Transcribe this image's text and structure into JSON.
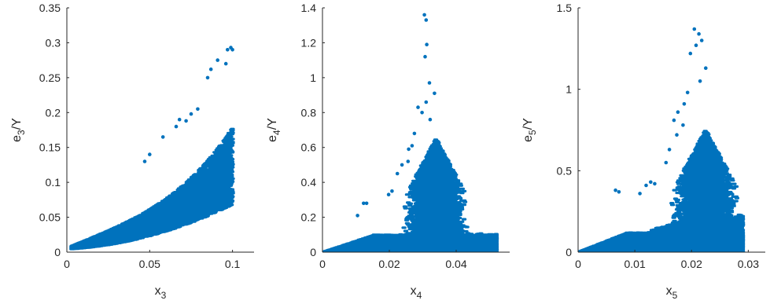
{
  "chart_data": [
    {
      "type": "scatter",
      "xlabel": {
        "base": "x",
        "sub": "3"
      },
      "ylabel": {
        "base": "e",
        "sub": "3",
        "suffix": "/Y"
      },
      "xlim": [
        0,
        0.113
      ],
      "ylim": [
        0,
        0.35
      ],
      "xticks": [
        0,
        0.05,
        0.1
      ],
      "xtick_labels": [
        "0",
        "0.05",
        "0.1"
      ],
      "yticks": [
        0,
        0.05,
        0.1,
        0.15,
        0.2,
        0.25,
        0.3,
        0.35
      ],
      "ytick_labels": [
        "0",
        "0.05",
        "0.1",
        "0.15",
        "0.2",
        "0.25",
        "0.3",
        "0.35"
      ],
      "color": "#0072BD",
      "grid": false,
      "bands": [
        {
          "x0": 0.003,
          "x1": 0.1,
          "lo_a": 0.004,
          "lo_b": 0.12,
          "lo_c": 0.65,
          "hi_a": 0.006,
          "hi_b": 0.55,
          "hi_c": 0.014,
          "hi_extra": 0.3,
          "hi_pow": 3.5,
          "n": 9000
        }
      ],
      "points": [
        {
          "x": 0.047,
          "y": 0.13
        },
        {
          "x": 0.05,
          "y": 0.14
        },
        {
          "x": 0.058,
          "y": 0.165
        },
        {
          "x": 0.066,
          "y": 0.18
        },
        {
          "x": 0.068,
          "y": 0.19
        },
        {
          "x": 0.072,
          "y": 0.188
        },
        {
          "x": 0.085,
          "y": 0.25
        },
        {
          "x": 0.087,
          "y": 0.262
        },
        {
          "x": 0.091,
          "y": 0.275
        },
        {
          "x": 0.097,
          "y": 0.29
        },
        {
          "x": 0.099,
          "y": 0.293
        },
        {
          "x": 0.1,
          "y": 0.29
        },
        {
          "x": 0.096,
          "y": 0.27
        },
        {
          "x": 0.079,
          "y": 0.205
        },
        {
          "x": 0.075,
          "y": 0.198
        }
      ]
    },
    {
      "type": "scatter",
      "xlabel": {
        "base": "x",
        "sub": "4"
      },
      "ylabel": {
        "base": "e",
        "sub": "4",
        "suffix": "/Y"
      },
      "xlim": [
        0,
        0.056
      ],
      "ylim": [
        0,
        1.4
      ],
      "xticks": [
        0,
        0.02,
        0.04
      ],
      "xtick_labels": [
        "0",
        "0.02",
        "0.04"
      ],
      "yticks": [
        0,
        0.2,
        0.4,
        0.6,
        0.8,
        1.0,
        1.2,
        1.4
      ],
      "ytick_labels": [
        "0",
        "0.2",
        "0.4",
        "0.6",
        "0.8",
        "1",
        "1.2",
        "1.4"
      ],
      "color": "#0072BD",
      "grid": false,
      "bands": [
        {
          "kind": "wedge",
          "x0": 0.0,
          "x1": 0.052,
          "slope": 4.9,
          "n": 9000
        },
        {
          "kind": "spike",
          "xc": 0.034,
          "xw": 0.0075,
          "peak": 0.65,
          "n": 9000
        },
        {
          "kind": "floor",
          "x0": 0.0,
          "x1": 0.052,
          "ymax": 0.1,
          "n": 5000
        }
      ],
      "points": [
        {
          "x": 0.0305,
          "y": 1.36
        },
        {
          "x": 0.031,
          "y": 1.33
        },
        {
          "x": 0.0312,
          "y": 1.19
        },
        {
          "x": 0.0307,
          "y": 1.12
        },
        {
          "x": 0.032,
          "y": 0.97
        },
        {
          "x": 0.0335,
          "y": 0.91
        },
        {
          "x": 0.031,
          "y": 0.86
        },
        {
          "x": 0.0286,
          "y": 0.83
        },
        {
          "x": 0.0298,
          "y": 0.8
        },
        {
          "x": 0.0322,
          "y": 0.76
        },
        {
          "x": 0.0275,
          "y": 0.68
        },
        {
          "x": 0.0268,
          "y": 0.61
        },
        {
          "x": 0.0258,
          "y": 0.59
        },
        {
          "x": 0.0238,
          "y": 0.5
        },
        {
          "x": 0.0256,
          "y": 0.52
        },
        {
          "x": 0.0224,
          "y": 0.45
        },
        {
          "x": 0.0208,
          "y": 0.35
        },
        {
          "x": 0.0198,
          "y": 0.33
        },
        {
          "x": 0.0123,
          "y": 0.28
        },
        {
          "x": 0.0132,
          "y": 0.28
        },
        {
          "x": 0.0105,
          "y": 0.21
        }
      ]
    },
    {
      "type": "scatter",
      "xlabel": {
        "base": "x",
        "sub": "5"
      },
      "ylabel": {
        "base": "e",
        "sub": "5",
        "suffix": "/Y"
      },
      "xlim": [
        0,
        0.033
      ],
      "ylim": [
        0,
        1.5
      ],
      "xticks": [
        0,
        0.01,
        0.02,
        0.03
      ],
      "xtick_labels": [
        "0",
        "0.01",
        "0.02",
        "0.03"
      ],
      "yticks": [
        0,
        0.5,
        1.0,
        1.5
      ],
      "ytick_labels": [
        "0",
        "0.5",
        "1",
        "1.5"
      ],
      "color": "#0072BD",
      "grid": false,
      "bands": [
        {
          "kind": "wedge",
          "x0": 0.0,
          "x1": 0.029,
          "slope": 10.5,
          "n": 9000
        },
        {
          "kind": "spike",
          "xc": 0.0225,
          "xw": 0.0048,
          "peak": 0.75,
          "n": 10000
        },
        {
          "kind": "floor",
          "x0": 0.0,
          "x1": 0.029,
          "ymax": 0.12,
          "n": 5000
        }
      ],
      "points": [
        {
          "x": 0.0205,
          "y": 1.37
        },
        {
          "x": 0.0213,
          "y": 1.34
        },
        {
          "x": 0.0218,
          "y": 1.3
        },
        {
          "x": 0.0208,
          "y": 1.27
        },
        {
          "x": 0.0198,
          "y": 1.22
        },
        {
          "x": 0.0225,
          "y": 1.13
        },
        {
          "x": 0.0215,
          "y": 1.05
        },
        {
          "x": 0.0193,
          "y": 0.98
        },
        {
          "x": 0.0187,
          "y": 0.91
        },
        {
          "x": 0.0176,
          "y": 0.86
        },
        {
          "x": 0.0169,
          "y": 0.81
        },
        {
          "x": 0.0185,
          "y": 0.78
        },
        {
          "x": 0.0174,
          "y": 0.72
        },
        {
          "x": 0.0161,
          "y": 0.63
        },
        {
          "x": 0.0155,
          "y": 0.55
        },
        {
          "x": 0.0128,
          "y": 0.43
        },
        {
          "x": 0.0135,
          "y": 0.42
        },
        {
          "x": 0.012,
          "y": 0.41
        },
        {
          "x": 0.0072,
          "y": 0.37
        },
        {
          "x": 0.0066,
          "y": 0.38
        },
        {
          "x": 0.0109,
          "y": 0.36
        }
      ]
    }
  ]
}
